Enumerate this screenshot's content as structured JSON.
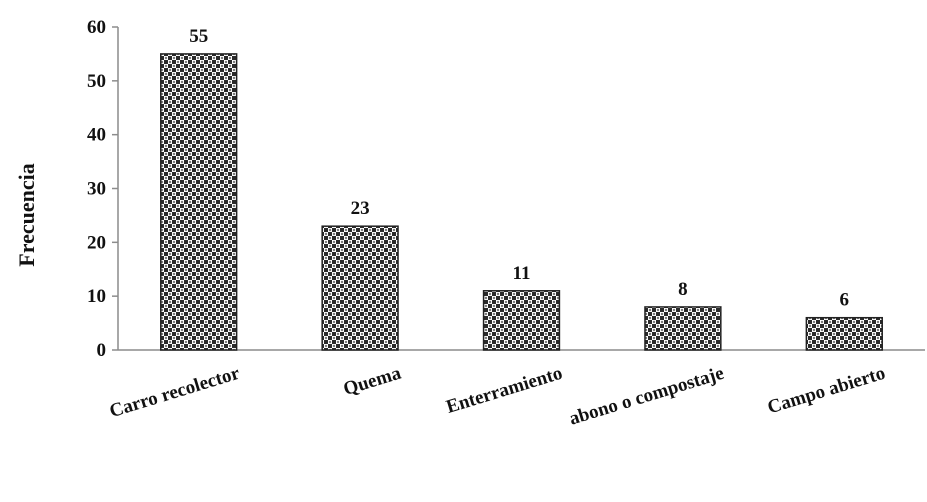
{
  "chart_data": {
    "type": "bar",
    "title": "",
    "xlabel": "",
    "ylabel": "Frecuencia",
    "categories": [
      "Carro recolector",
      "Quema",
      "Enterramiento",
      "abono o compostaje",
      "Campo abierto"
    ],
    "values": [
      55,
      23,
      11,
      8,
      6
    ],
    "data_labels": [
      "55",
      "23",
      "11",
      "8",
      "6"
    ],
    "ylim": [
      0,
      60
    ],
    "yticks": [
      "0",
      "10",
      "20",
      "30",
      "40",
      "50",
      "60"
    ],
    "grid": false,
    "legend": "none",
    "bar_pattern": "checkered dots",
    "colors": {
      "bar_fill": "#ffffff",
      "bar_pattern": "#2a2a2a",
      "axis": "#8c8c8c",
      "text": "#111111"
    }
  }
}
